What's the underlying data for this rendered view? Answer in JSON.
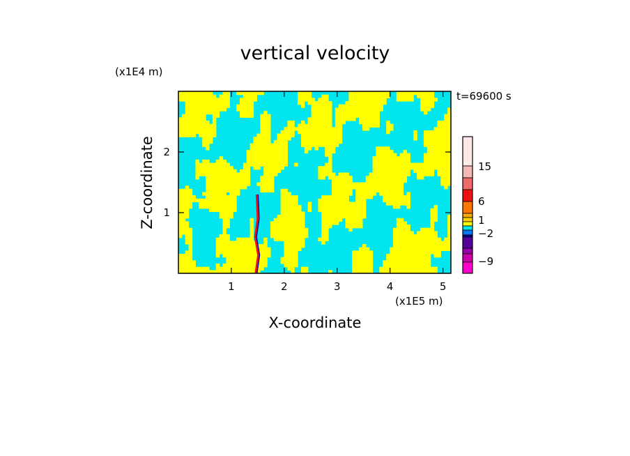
{
  "chart_data": {
    "type": "heatmap",
    "title": "vertical velocity",
    "xlabel": "X-coordinate",
    "ylabel": "Z-coordinate",
    "x_unit": "(x1E5 m)",
    "y_unit": "(x1E4 m)",
    "time_label": "t=69600 s",
    "xlim": [
      0,
      5.15
    ],
    "ylim": [
      0,
      3.0
    ],
    "x_ticks": [
      1,
      2,
      3,
      4,
      5
    ],
    "y_ticks": [
      1,
      2
    ],
    "x_tick_labels": [
      "1",
      "2",
      "3",
      "4",
      "5"
    ],
    "y_tick_labels": [
      "1",
      "2"
    ],
    "colorbar": {
      "tick_labels": [
        "15",
        "6",
        "1",
        "−2",
        "−9"
      ],
      "tick_values": [
        15,
        6,
        1,
        -2,
        -9
      ],
      "colors_top_to_bottom": [
        "#ffe8e8",
        "#f5b8b8",
        "#ee6b6b",
        "#ee1111",
        "#ff7700",
        "#ffaa00",
        "#ffd000",
        "#ffff00",
        "#00e5ee",
        "#0077ee",
        "#0000a0",
        "#550099",
        "#9900aa",
        "#cc00aa",
        "#ff00cc"
      ]
    },
    "field_colors": {
      "positive": "#ffff00",
      "negative": "#00e5ee"
    },
    "jet": {
      "x": 1.48,
      "z_top": 1.3
    }
  }
}
